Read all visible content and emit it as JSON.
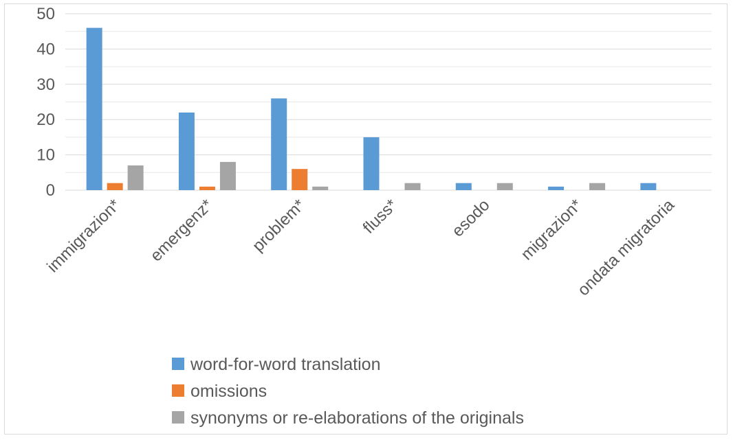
{
  "chart_data": {
    "type": "bar",
    "categories": [
      "immigrazion*",
      "emergenz*",
      "problem*",
      "fluss*",
      "esodo",
      "migrazion*",
      "ondata migratoria"
    ],
    "series": [
      {
        "name": "word-for-word translation",
        "color": "#5b9bd5",
        "values": [
          46,
          22,
          26,
          15,
          2,
          1,
          2
        ]
      },
      {
        "name": "omissions",
        "color": "#ed7d31",
        "values": [
          2,
          1,
          6,
          0,
          0,
          0,
          0
        ]
      },
      {
        "name": "synonyms or re-elaborations of the originals",
        "color": "#a5a5a5",
        "values": [
          7,
          8,
          1,
          2,
          2,
          2,
          0
        ]
      }
    ],
    "yticks": [
      0,
      10,
      20,
      30,
      40,
      50
    ],
    "ylim": [
      0,
      50
    ],
    "grid": true,
    "legend_position": "bottom"
  }
}
